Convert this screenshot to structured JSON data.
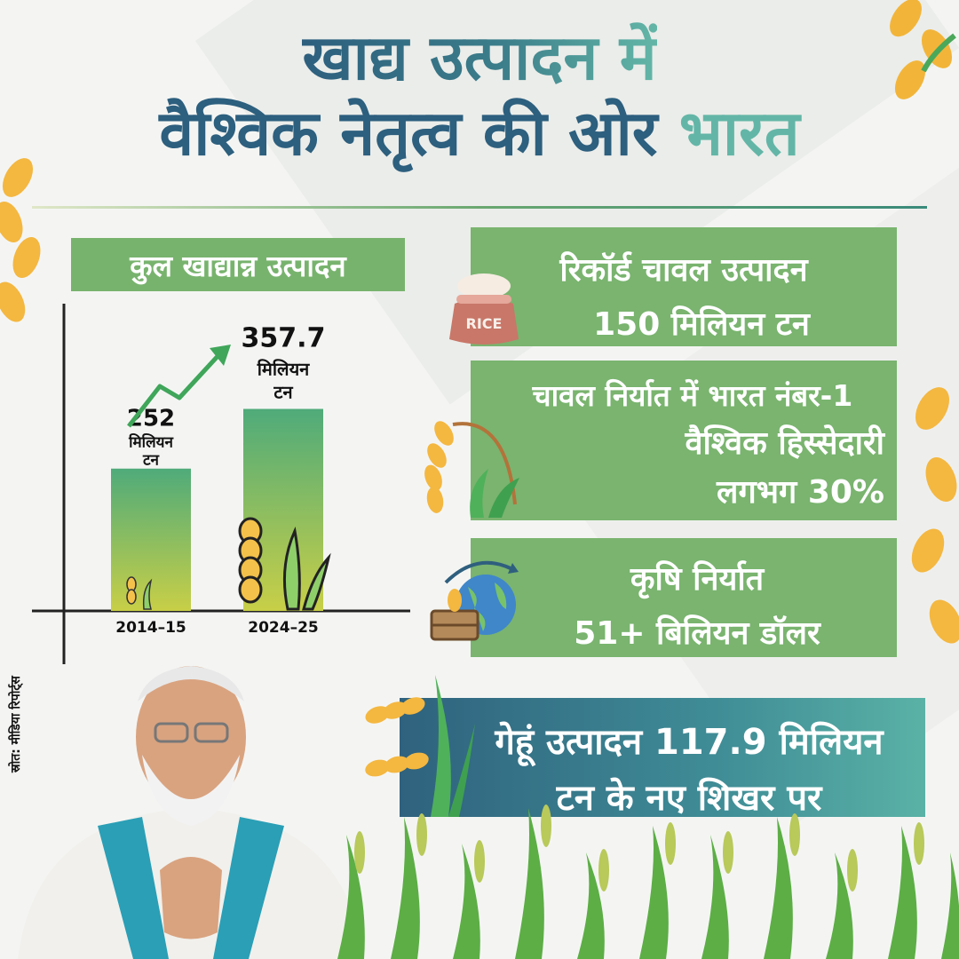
{
  "title": {
    "line1": "खाद्य उत्पादन में",
    "line2_part1": "वैश्विक नेतृत्व की ओर",
    "line2_part2": "भारत"
  },
  "chart_data": {
    "type": "bar",
    "title": "कुल खाद्यान्न उत्पादन",
    "categories": [
      "2014–15",
      "2024–25"
    ],
    "values": [
      252,
      357.7
    ],
    "value_labels": [
      "252",
      "357.7"
    ],
    "unit_line1": "मिलियन",
    "unit_line2": "टन",
    "ylim": [
      0,
      500
    ],
    "grid": false,
    "trend_arrow": "up"
  },
  "cards": {
    "rice": {
      "line1": "रिकॉर्ड चावल उत्पादन",
      "line2": "150 मिलियन टन",
      "icon_text": "RICE"
    },
    "export": {
      "line1": "चावल निर्यात में भारत नंबर-1",
      "line2": "वैश्विक हिस्सेदारी",
      "line3": "लगभग 30%"
    },
    "agri": {
      "line1": "कृषि निर्यात",
      "line2": "51+ बिलियन डॉलर"
    },
    "wheat": {
      "line1": "गेहूं उत्पादन 117.9 मिलियन",
      "line2": "टन के नए शिखर पर"
    }
  },
  "source": "स्रोत: मीडिया रिपोर्ट्स",
  "colors": {
    "card_green": "#7ab46f",
    "title_dark": "#2d5f7e",
    "title_teal": "#63b6a7",
    "bar_top": "#4fab7a",
    "bar_bottom": "#c8cf47",
    "arrow": "#3fa65a"
  },
  "icons": [
    "wheat-icon",
    "rice-sack-icon",
    "globe-export-icon",
    "wheat-stalk-icon",
    "grain-plant-icon",
    "grass-decoration",
    "person-photo"
  ]
}
